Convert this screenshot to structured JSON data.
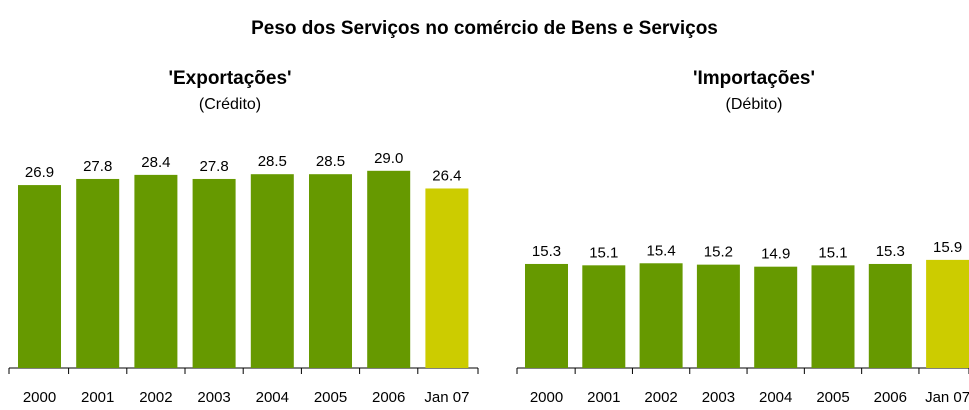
{
  "title": "Peso dos Serviços no comércio de Bens e Serviços",
  "colors": {
    "regular": "#669900",
    "highlight": "#cccc00",
    "axis": "#000000"
  },
  "chart_data": [
    {
      "type": "bar",
      "title": "'Exportações'",
      "subtitle": "(Crédito)",
      "categories": [
        "2000",
        "2001",
        "2002",
        "2003",
        "2004",
        "2005",
        "2006",
        "Jan 07"
      ],
      "values": [
        26.9,
        27.8,
        28.4,
        27.8,
        28.5,
        28.5,
        29.0,
        26.4
      ],
      "value_labels": [
        "26.9",
        "27.8",
        "28.4",
        "27.8",
        "28.5",
        "28.5",
        "29.0",
        "26.4"
      ],
      "highlight_index": 7,
      "ylim": [
        0,
        30
      ],
      "grid": false,
      "legend": "none"
    },
    {
      "type": "bar",
      "title": "'Importações'",
      "subtitle": "(Débito)",
      "categories": [
        "2000",
        "2001",
        "2002",
        "2003",
        "2004",
        "2005",
        "2006",
        "Jan 07"
      ],
      "values": [
        15.3,
        15.1,
        15.4,
        15.2,
        14.9,
        15.1,
        15.3,
        15.9
      ],
      "value_labels": [
        "15.3",
        "15.1",
        "15.4",
        "15.2",
        "14.9",
        "15.1",
        "15.3",
        "15.9"
      ],
      "highlight_index": 7,
      "ylim": [
        0,
        30
      ],
      "grid": false,
      "legend": "none"
    }
  ]
}
